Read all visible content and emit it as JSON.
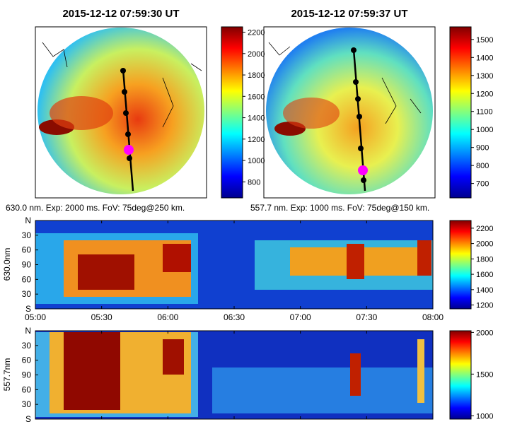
{
  "colors": {
    "colormap": [
      "#00008f",
      "#0000ff",
      "#0080ff",
      "#00ffff",
      "#80ff80",
      "#ffff00",
      "#ff8000",
      "#ff0000",
      "#800000"
    ],
    "frame": "#000000",
    "track": "#000000",
    "marker": "#ff00ff",
    "coast": "#000000"
  },
  "chart_data": [
    {
      "type": "heatmap",
      "panel": "allsky-630",
      "title": "2015-12-12 07:59:30 UT",
      "caption": "630.0 nm. Exp: 2000 ms. FoV: 75deg@250 km.",
      "colorbar": {
        "ticks": [
          800,
          1000,
          1200,
          1400,
          1600,
          1800,
          2000,
          2200
        ],
        "range": [
          650,
          2250
        ]
      }
    },
    {
      "type": "heatmap",
      "panel": "allsky-557",
      "title": "2015-12-12 07:59:37 UT",
      "caption": "557.7 nm. Exp: 1000 ms. FoV: 75deg@150 km.",
      "colorbar": {
        "ticks": [
          700,
          800,
          900,
          1000,
          1100,
          1200,
          1300,
          1400,
          1500
        ],
        "range": [
          620,
          1570
        ]
      }
    },
    {
      "type": "heatmap",
      "panel": "keogram-630",
      "ylabel": "630.0nm",
      "yticks": [
        "N",
        "30",
        "60",
        "90",
        "60",
        "30",
        "S"
      ],
      "xticks": [
        "05:00",
        "05:30",
        "06:00",
        "06:30",
        "07:00",
        "07:30",
        "08:00"
      ],
      "xlim": [
        "05:00",
        "08:00"
      ],
      "colorbar": {
        "ticks": [
          1200,
          1400,
          1600,
          1800,
          2000,
          2200
        ],
        "range": [
          1150,
          2300
        ]
      }
    },
    {
      "type": "heatmap",
      "panel": "keogram-557",
      "ylabel": "557.7nm",
      "yticks": [
        "N",
        "30",
        "60",
        "90",
        "60",
        "30",
        "S"
      ],
      "xlim": [
        "05:00",
        "08:00"
      ],
      "colorbar": {
        "ticks": [
          1000,
          1500,
          2000
        ],
        "range": [
          960,
          2020
        ]
      }
    }
  ]
}
